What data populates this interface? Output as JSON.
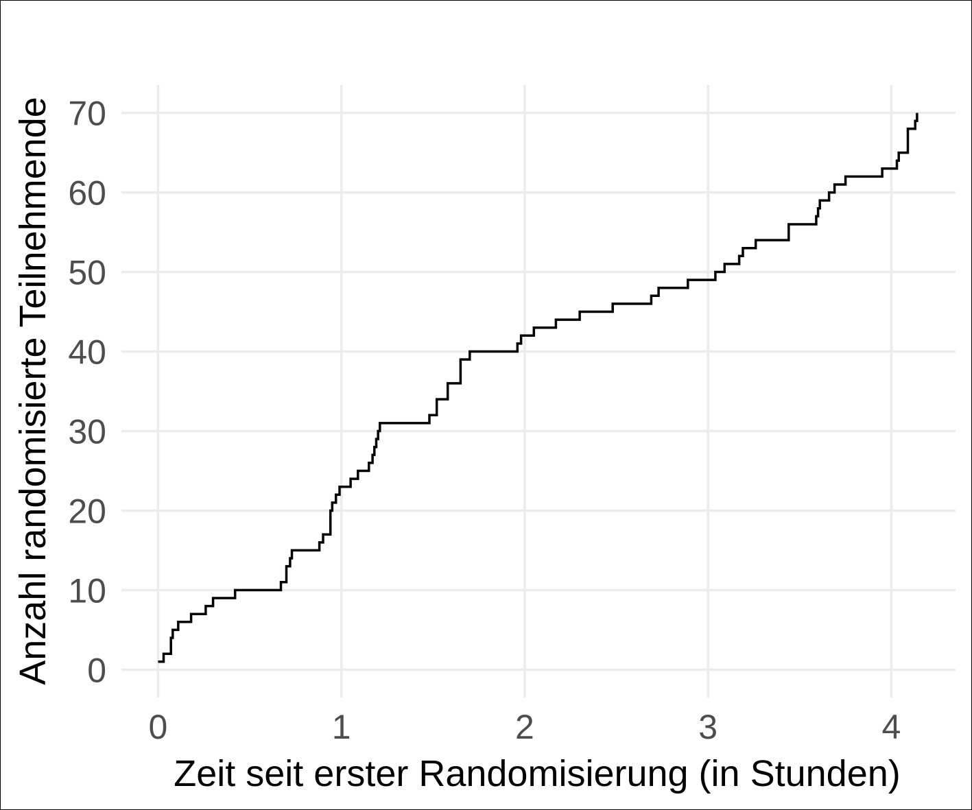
{
  "chart_data": {
    "type": "line",
    "step": true,
    "xlabel": "Zeit seit erster Randomisierung (in Stunden)",
    "ylabel": "Anzahl randomisierte Teilnehmende",
    "xlim": [
      -0.2,
      4.35
    ],
    "ylim": [
      -3.5,
      73.5
    ],
    "xticks": [
      0,
      1,
      2,
      3,
      4
    ],
    "yticks": [
      0,
      10,
      20,
      30,
      40,
      50,
      60,
      70
    ],
    "xtick_labels": [
      "0",
      "1",
      "2",
      "3",
      "4"
    ],
    "ytick_labels": [
      "0",
      "10",
      "20",
      "30",
      "40",
      "50",
      "60",
      "70"
    ],
    "grid": true,
    "legend": "none",
    "line_color": "#000000",
    "series": [
      {
        "x": [
          0.0,
          0.03,
          0.07,
          0.08,
          0.11,
          0.18,
          0.26,
          0.3,
          0.42,
          0.67,
          0.7,
          0.72,
          0.73,
          0.88,
          0.9,
          0.94,
          0.95,
          0.97,
          0.99,
          1.05,
          1.09,
          1.15,
          1.17,
          1.18,
          1.19,
          1.2,
          1.21,
          1.23,
          1.48,
          1.52,
          1.58,
          1.65,
          1.7,
          1.96,
          1.98,
          2.05,
          2.17,
          2.3,
          2.48,
          2.69,
          2.73,
          2.89,
          3.04,
          3.09,
          3.17,
          3.19,
          3.26,
          3.44,
          3.59,
          3.6,
          3.61,
          3.63,
          3.66,
          3.69,
          3.75,
          3.95,
          4.03,
          4.04,
          4.06,
          4.09,
          4.13,
          4.14
        ],
        "y": [
          1,
          2,
          4,
          5,
          6,
          7,
          8,
          9,
          10,
          11,
          13,
          14,
          15,
          16,
          17,
          20,
          21,
          22,
          23,
          24,
          25,
          26,
          27,
          28,
          29,
          30,
          31,
          31,
          32,
          34,
          36,
          39,
          40,
          41,
          42,
          43,
          44,
          45,
          46,
          47,
          48,
          49,
          50,
          51,
          52,
          53,
          54,
          56,
          57,
          58,
          59,
          59,
          60,
          61,
          62,
          63,
          64,
          65,
          65,
          68,
          69,
          70
        ]
      }
    ]
  }
}
